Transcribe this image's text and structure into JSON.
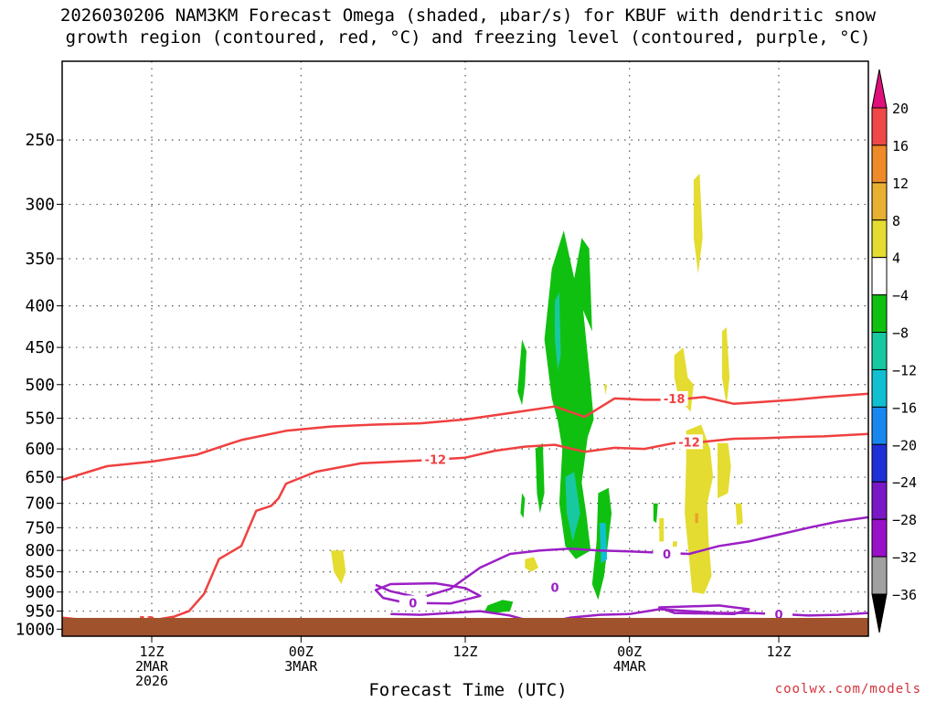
{
  "title_line1": "2026030206 NAM3KM Forecast Omega (shaded, μbar/s) for KBUF with dendritic snow",
  "title_line2": "growth region (contoured, red, °C) and freezing level (contoured, purple, °C)",
  "credit": "coolwx.com/models",
  "colors": {
    "isotherm": "#f04040",
    "freezing": "#9b1fc4",
    "ground": "#a0522d",
    "grid": "#555555"
  },
  "chart_data": {
    "type": "heatmap",
    "title": "2026030206 NAM3KM Forecast Omega (shaded, μbar/s) for KBUF with dendritic snow growth region (contoured, red, °C) and freezing level (contoured, purple, °C)",
    "xlabel": "Forecast Time (UTC)",
    "ylabel": "",
    "x_units": "hours since 2026-03-02 06Z",
    "xlim": [
      0,
      54
    ],
    "ylim_hpa": [
      1020,
      200
    ],
    "y_scale": "log-pressure",
    "yticks": [
      250,
      300,
      350,
      400,
      450,
      500,
      550,
      600,
      650,
      700,
      750,
      800,
      850,
      900,
      950,
      1000
    ],
    "xticks": [
      {
        "hour": 6,
        "lines": [
          "12Z",
          "2MAR",
          "2026"
        ]
      },
      {
        "hour": 16,
        "lines": [
          "00Z",
          "3MAR"
        ]
      },
      {
        "hour": 27,
        "lines": [
          "12Z"
        ]
      },
      {
        "hour": 38,
        "lines": [
          "00Z",
          "4MAR"
        ]
      },
      {
        "hour": 48,
        "lines": [
          "12Z"
        ]
      }
    ],
    "colorbar": {
      "levels": [
        -36,
        -32,
        -28,
        -24,
        -20,
        -16,
        -12,
        -8,
        -4,
        4,
        8,
        12,
        16,
        20
      ],
      "colors": [
        "#000000",
        "#a0a0a0",
        "#9a10c8",
        "#7a18c8",
        "#2030d8",
        "#1888f0",
        "#10c0d0",
        "#18c8a0",
        "#10c010",
        "#ffffff",
        "#e4dc30",
        "#e8b030",
        "#ee8a28",
        "#f04848",
        "#e0107a"
      ]
    },
    "series": [
      {
        "name": "-18 °C isotherm",
        "label": "-18",
        "color": "isotherm",
        "x": [
          0,
          3,
          6,
          9,
          12,
          15,
          18,
          21,
          24,
          27,
          30,
          33,
          35,
          37,
          39,
          41,
          43,
          45,
          47,
          49,
          51,
          54
        ],
        "y": [
          655,
          630,
          622,
          610,
          585,
          570,
          563,
          560,
          558,
          552,
          542,
          532,
          548,
          520,
          522,
          522,
          518,
          528,
          525,
          522,
          518,
          513
        ]
      },
      {
        "name": "-12 °C isotherm",
        "label": "-12",
        "color": "isotherm",
        "x": [
          0,
          1,
          3,
          5,
          6.5,
          7.5,
          8.5,
          9.5,
          10.5,
          12,
          13,
          14,
          14.5,
          15,
          17,
          20,
          24,
          27,
          29,
          31,
          33,
          35,
          37,
          39,
          41,
          43,
          45,
          47,
          49,
          51,
          54
        ],
        "y": [
          968,
          972,
          976,
          977,
          972,
          965,
          950,
          905,
          820,
          790,
          715,
          705,
          690,
          662,
          640,
          625,
          620,
          615,
          603,
          596,
          593,
          605,
          598,
          600,
          590,
          588,
          583,
          582,
          580,
          579,
          575
        ]
      },
      {
        "name": "0 °C freezing level (main)",
        "label": "0",
        "color": "freezing",
        "x": [
          21,
          22,
          24,
          26,
          28,
          30,
          32,
          34,
          36,
          38,
          40,
          42,
          44,
          46,
          48,
          50,
          52,
          54
        ],
        "y": [
          882,
          898,
          915,
          892,
          840,
          808,
          800,
          796,
          800,
          802,
          805,
          808,
          790,
          780,
          765,
          750,
          737,
          728
        ]
      },
      {
        "name": "0 °C freezing level (low loop)",
        "label": "0",
        "color": "freezing",
        "x": [
          22,
          24,
          26,
          28,
          30,
          32,
          34,
          36,
          38,
          40,
          42,
          44,
          46,
          48,
          50,
          52,
          54
        ],
        "y": [
          958,
          960,
          955,
          950,
          962,
          985,
          968,
          960,
          958,
          945,
          950,
          955,
          955,
          958,
          962,
          960,
          955
        ]
      }
    ]
  }
}
